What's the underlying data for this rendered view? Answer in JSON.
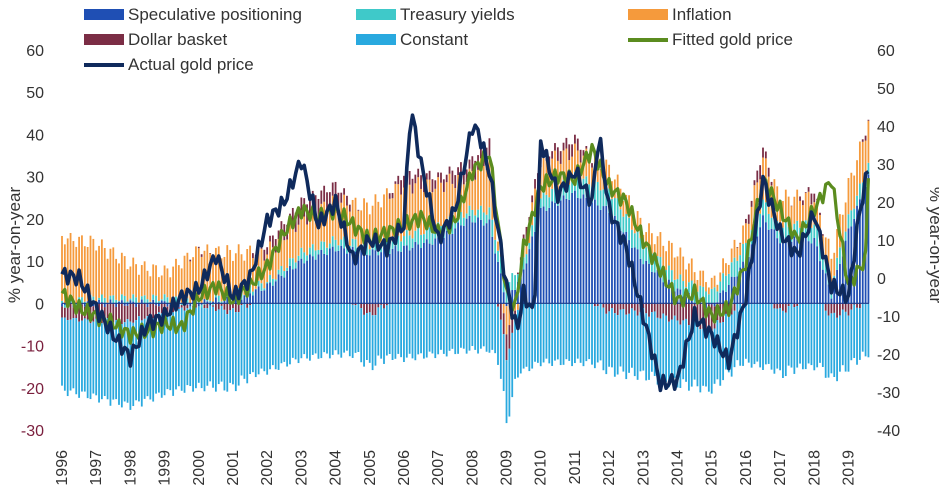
{
  "chart_data": {
    "type": "bar+line",
    "title": "",
    "ylabel_left": "% year-on-year",
    "ylabel_right": "% year-on-year",
    "ylim_left": [
      -30,
      60
    ],
    "ylim_right": [
      -40,
      60
    ],
    "yticks_left": [
      -30,
      -20,
      -10,
      0,
      10,
      20,
      30,
      40,
      50,
      60
    ],
    "yticks_right": [
      -40,
      -30,
      -20,
      -10,
      0,
      10,
      20,
      30,
      40,
      50,
      60
    ],
    "x_range": [
      1996,
      2019.6
    ],
    "x_tick_labels": [
      "1996",
      "1997",
      "1998",
      "1999",
      "2000",
      "2001",
      "2002",
      "2003",
      "2004",
      "2005",
      "2006",
      "2007",
      "2008",
      "2009",
      "2010",
      "2011",
      "2012",
      "2013",
      "2014",
      "2015",
      "2016",
      "2017",
      "2018",
      "2019"
    ],
    "legend": {
      "placement": "top",
      "entries": [
        {
          "name": "Speculative positioning",
          "color": "#1f4fb4",
          "kind": "bar"
        },
        {
          "name": "Treasury yields",
          "color": "#3fc9c9",
          "kind": "bar"
        },
        {
          "name": "Inflation",
          "color": "#f59a3c",
          "kind": "bar"
        },
        {
          "name": "Dollar basket",
          "color": "#7b2d45",
          "kind": "bar"
        },
        {
          "name": "Constant",
          "color": "#29a9df",
          "kind": "bar"
        },
        {
          "name": "Fitted gold price",
          "color": "#5b8c1f",
          "kind": "line"
        },
        {
          "name": "Actual gold price",
          "color": "#0f2a5c",
          "kind": "line"
        }
      ]
    },
    "stack_anchor_dates": [
      1996.0,
      1997.0,
      1998.0,
      1999.0,
      2000.0,
      2001.0,
      2002.0,
      2003.0,
      2004.0,
      2005.0,
      2006.0,
      2007.0,
      2007.9,
      2008.5,
      2009.0,
      2009.5,
      2010.0,
      2011.0,
      2012.0,
      2013.0,
      2014.0,
      2015.0,
      2016.0,
      2016.5,
      2017.0,
      2018.0,
      2018.5,
      2019.0,
      2019.6
    ],
    "stack_anchor_series": [
      {
        "name": "Speculative positioning",
        "values": [
          0,
          0,
          0,
          0,
          0,
          1,
          4,
          10,
          13,
          12,
          13,
          15,
          20,
          19,
          0,
          8,
          22,
          26,
          22,
          10,
          3,
          -1,
          10,
          20,
          15,
          15,
          2,
          17,
          30
        ]
      },
      {
        "name": "Treasury yields",
        "values": [
          0,
          1,
          1,
          1,
          0,
          1,
          1,
          2,
          2,
          2,
          3,
          3,
          2,
          3,
          4,
          2,
          3,
          4,
          5,
          4,
          3,
          3,
          4,
          4,
          3,
          4,
          3,
          3,
          3
        ]
      },
      {
        "name": "Inflation",
        "values": [
          15,
          13,
          8,
          6,
          12,
          10,
          7,
          8,
          9,
          9,
          12,
          10,
          8,
          12,
          -6,
          2,
          8,
          6,
          5,
          4,
          6,
          2,
          4,
          10,
          7,
          6,
          6,
          8,
          10
        ]
      },
      {
        "name": "Dollar basket",
        "values": [
          -3,
          -4,
          -4,
          -2,
          0,
          -2,
          2,
          4,
          4,
          -3,
          3,
          2,
          3,
          5,
          -7,
          3,
          2,
          3,
          -2,
          -2,
          -4,
          -6,
          1,
          3,
          -2,
          2,
          -3,
          -2,
          1
        ]
      },
      {
        "name": "Constant",
        "values": [
          -17,
          -18,
          -20,
          -19,
          -19,
          -18,
          -16,
          -13,
          -12,
          -12,
          -13,
          -12,
          -11,
          -11,
          -15,
          -16,
          -14,
          -14,
          -14,
          -15,
          -15,
          -14,
          -14,
          -15,
          -15,
          -15,
          -15,
          -13,
          -12
        ]
      }
    ],
    "fitted_gold_price": {
      "x": [
        1996.0,
        1996.5,
        1997.0,
        1997.5,
        1998.0,
        1998.5,
        1999.0,
        1999.5,
        2000.0,
        2000.5,
        2001.0,
        2001.5,
        2002.0,
        2002.5,
        2003.0,
        2003.5,
        2004.0,
        2004.5,
        2005.0,
        2005.5,
        2006.0,
        2006.5,
        2007.0,
        2007.5,
        2008.0,
        2008.5,
        2009.0,
        2009.25,
        2009.5,
        2010.0,
        2010.5,
        2011.0,
        2011.5,
        2012.0,
        2012.5,
        2013.0,
        2013.5,
        2014.0,
        2014.5,
        2015.0,
        2015.5,
        2016.0,
        2016.5,
        2017.0,
        2017.5,
        2018.0,
        2018.5,
        2019.0,
        2019.5,
        2019.6
      ],
      "values": [
        -4,
        -8,
        -10,
        -12,
        -15,
        -14,
        -12,
        -13,
        -5,
        -2,
        -6,
        -2,
        3,
        12,
        18,
        16,
        18,
        14,
        10,
        12,
        14,
        16,
        12,
        15,
        28,
        33,
        -4,
        -8,
        8,
        24,
        27,
        26,
        34,
        24,
        20,
        10,
        2,
        -6,
        -4,
        -10,
        -8,
        4,
        26,
        18,
        10,
        18,
        26,
        -2,
        5,
        32
      ]
    },
    "actual_gold_price": {
      "x": [
        1996.0,
        1996.5,
        1997.0,
        1997.5,
        1998.0,
        1998.5,
        1999.0,
        1999.5,
        2000.0,
        2000.5,
        2001.0,
        2001.5,
        2002.0,
        2002.5,
        2003.0,
        2003.5,
        2004.0,
        2004.5,
        2005.0,
        2005.5,
        2006.0,
        2006.2,
        2006.5,
        2007.0,
        2007.5,
        2008.0,
        2008.2,
        2008.5,
        2009.0,
        2009.3,
        2009.5,
        2009.8,
        2010.0,
        2010.5,
        2011.0,
        2011.5,
        2011.7,
        2012.0,
        2012.5,
        2013.0,
        2013.5,
        2014.0,
        2014.5,
        2015.0,
        2015.5,
        2016.0,
        2016.5,
        2017.0,
        2017.5,
        2018.0,
        2018.5,
        2019.0,
        2019.3,
        2019.6
      ],
      "values": [
        1,
        0,
        -8,
        -15,
        -21,
        -12,
        -10,
        -5,
        -3,
        6,
        -5,
        0,
        15,
        20,
        31,
        14,
        20,
        5,
        10,
        8,
        14,
        45,
        30,
        10,
        18,
        40,
        38,
        28,
        -2,
        -14,
        -4,
        -10,
        36,
        22,
        28,
        20,
        38,
        18,
        8,
        -10,
        -28,
        -27,
        -10,
        -15,
        -22,
        -5,
        26,
        12,
        6,
        17,
        -2,
        -5,
        16,
        30
      ]
    }
  }
}
